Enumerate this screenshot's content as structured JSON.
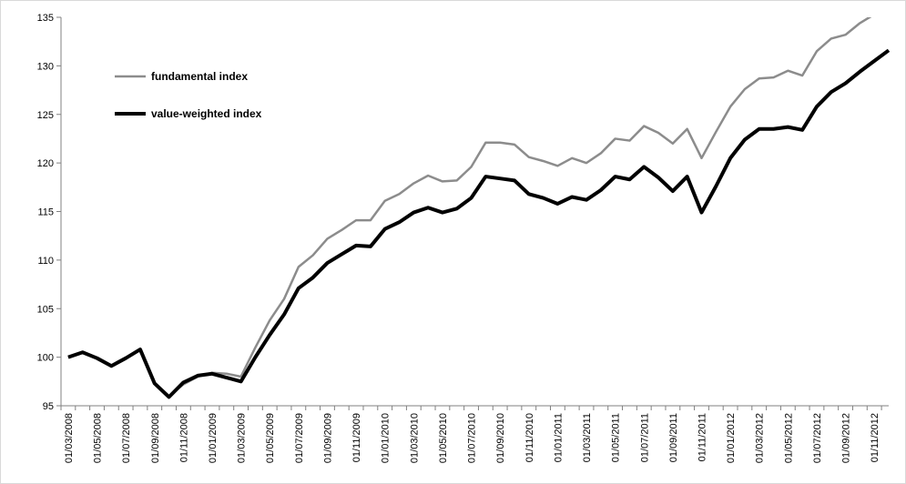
{
  "chart_data": {
    "type": "line",
    "title": "",
    "xlabel": "",
    "ylabel": "",
    "ylim": [
      95,
      135
    ],
    "yticks": [
      95,
      100,
      105,
      110,
      115,
      120,
      125,
      130,
      135
    ],
    "grid": false,
    "legend_position": "top-left",
    "x": [
      "01/03/2008",
      "01/04/2008",
      "01/05/2008",
      "01/06/2008",
      "01/07/2008",
      "01/08/2008",
      "01/09/2008",
      "01/10/2008",
      "01/11/2008",
      "01/12/2008",
      "01/01/2009",
      "01/02/2009",
      "01/03/2009",
      "01/04/2009",
      "01/05/2009",
      "01/06/2009",
      "01/07/2009",
      "01/08/2009",
      "01/09/2009",
      "01/10/2009",
      "01/11/2009",
      "01/12/2009",
      "01/01/2010",
      "01/02/2010",
      "01/03/2010",
      "01/04/2010",
      "01/05/2010",
      "01/06/2010",
      "01/07/2010",
      "01/08/2010",
      "01/09/2010",
      "01/10/2010",
      "01/11/2010",
      "01/12/2010",
      "01/01/2011",
      "01/02/2011",
      "01/03/2011",
      "01/04/2011",
      "01/05/2011",
      "01/06/2011",
      "01/07/2011",
      "01/08/2011",
      "01/09/2011",
      "01/10/2011",
      "01/11/2011",
      "01/12/2011",
      "01/01/2012",
      "01/02/2012",
      "01/03/2012",
      "01/04/2012",
      "01/05/2012",
      "01/06/2012",
      "01/07/2012",
      "01/08/2012",
      "01/09/2012",
      "01/10/2012",
      "01/11/2012",
      "01/12/2012"
    ],
    "x_tick_labels": [
      "01/03/2008",
      "01/05/2008",
      "01/07/2008",
      "01/09/2008",
      "01/11/2008",
      "01/01/2009",
      "01/03/2009",
      "01/05/2009",
      "01/07/2009",
      "01/09/2009",
      "01/11/2009",
      "01/01/2010",
      "01/03/2010",
      "01/05/2010",
      "01/07/2010",
      "01/09/2010",
      "01/11/2010",
      "01/01/2011",
      "01/03/2011",
      "01/05/2011",
      "01/07/2011",
      "01/09/2011",
      "01/11/2011",
      "01/01/2012",
      "01/03/2012",
      "01/05/2012",
      "01/07/2012",
      "01/09/2012",
      "01/11/2012"
    ],
    "series": [
      {
        "name": "fundamental index",
        "color": "#8c8c8c",
        "values": [
          100.0,
          100.5,
          99.9,
          99.1,
          99.9,
          100.8,
          97.3,
          96.0,
          97.2,
          98.0,
          98.4,
          98.3,
          98.0,
          101.0,
          103.8,
          106.0,
          109.3,
          110.5,
          112.2,
          113.1,
          114.1,
          114.1,
          116.1,
          116.8,
          117.9,
          118.7,
          118.1,
          118.2,
          119.6,
          122.1,
          122.1,
          121.9,
          120.6,
          120.2,
          119.7,
          120.5,
          120.0,
          121.0,
          122.5,
          122.3,
          123.8,
          123.1,
          122.0,
          123.5,
          120.5,
          123.2,
          125.8,
          127.6,
          128.7,
          128.8,
          129.5,
          129.0,
          131.5,
          132.8,
          133.2,
          134.4,
          135.3,
          136.1
        ]
      },
      {
        "name": "value-weighted index",
        "color": "#000000",
        "values": [
          100.0,
          100.5,
          99.9,
          99.1,
          99.9,
          100.8,
          97.3,
          95.9,
          97.4,
          98.1,
          98.3,
          97.9,
          97.5,
          100.0,
          102.3,
          104.4,
          107.1,
          108.2,
          109.7,
          110.6,
          111.5,
          111.4,
          113.2,
          113.9,
          114.9,
          115.4,
          114.9,
          115.3,
          116.4,
          118.6,
          118.4,
          118.2,
          116.8,
          116.4,
          115.8,
          116.5,
          116.2,
          117.2,
          118.6,
          118.3,
          119.6,
          118.5,
          117.1,
          118.6,
          114.9,
          117.6,
          120.5,
          122.4,
          123.5,
          123.5,
          123.7,
          123.4,
          125.8,
          127.3,
          128.2,
          129.4,
          130.5,
          131.6
        ]
      }
    ]
  }
}
